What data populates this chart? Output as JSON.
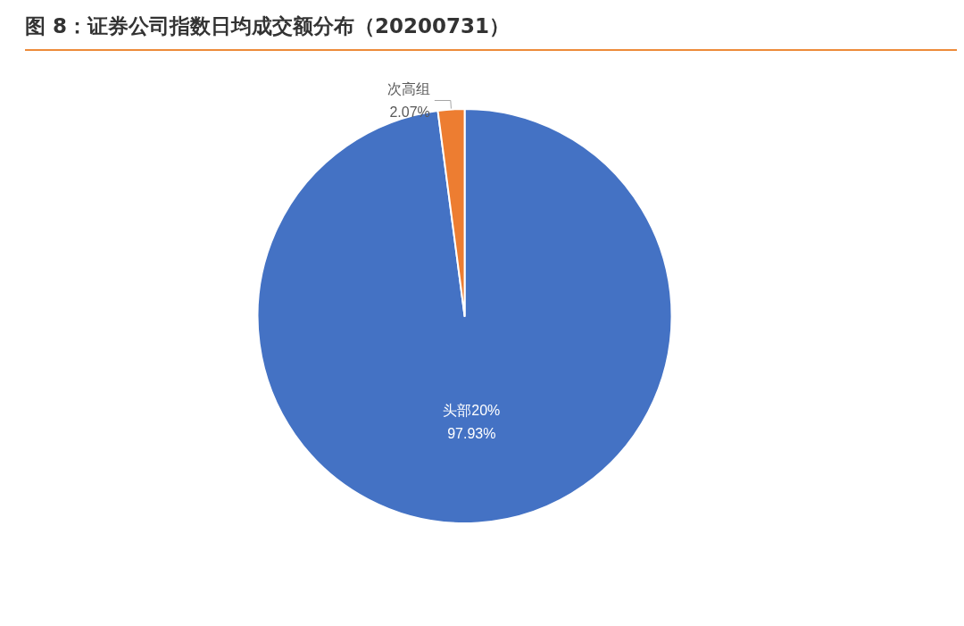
{
  "chart_data": {
    "type": "pie",
    "title": "图 8：证券公司指数日均成交额分布（20200731）",
    "categories": [
      "头部20%",
      "次高组"
    ],
    "values": [
      97.93,
      2.07
    ],
    "value_labels": [
      "97.93%",
      "2.07%"
    ],
    "colors": [
      "#4472c4",
      "#ed7d31"
    ],
    "legend": false
  }
}
